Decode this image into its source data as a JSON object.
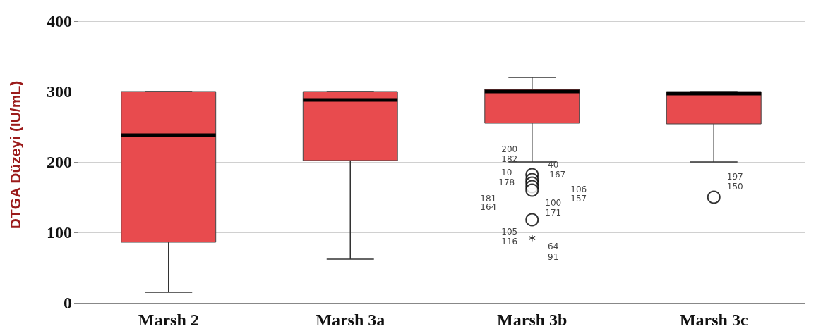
{
  "chart_data": {
    "type": "box",
    "ylabel": "DTGA Düzeyi (IU/mL)",
    "categories": [
      "Marsh 2",
      "Marsh 3a",
      "Marsh 3b",
      "Marsh 3c"
    ],
    "color": "#e84b4e",
    "ylim": [
      0,
      420
    ],
    "yticks": [
      0,
      100,
      200,
      300,
      400
    ],
    "grid": "y",
    "marker": "circle",
    "boxes": [
      {
        "low": 15,
        "q1": 86,
        "median": 238,
        "q3": 300,
        "high": 300
      },
      {
        "low": 62,
        "q1": 202,
        "median": 288,
        "q3": 300,
        "high": 300
      },
      {
        "low": 200,
        "q1": 255,
        "median": 300,
        "q3": 303,
        "high": 320,
        "outliers": [
          182,
          175,
          170,
          165,
          160,
          118
        ]
      },
      {
        "low": 200,
        "q1": 254,
        "median": 297,
        "q3": 300,
        "high": 300,
        "outliers": [
          150
        ]
      }
    ],
    "series": [
      {
        "type": "scatter",
        "marker": "cross",
        "x": [
          "Marsh 3b"
        ],
        "values": [
          92
        ],
        "color": "#000000"
      }
    ],
    "annotations": [
      "200",
      "182",
      "40",
      "167",
      "10",
      "178",
      "106",
      "157",
      "181",
      "164",
      "100",
      "171",
      "105",
      "116",
      "64",
      "91",
      "197",
      "150"
    ]
  }
}
